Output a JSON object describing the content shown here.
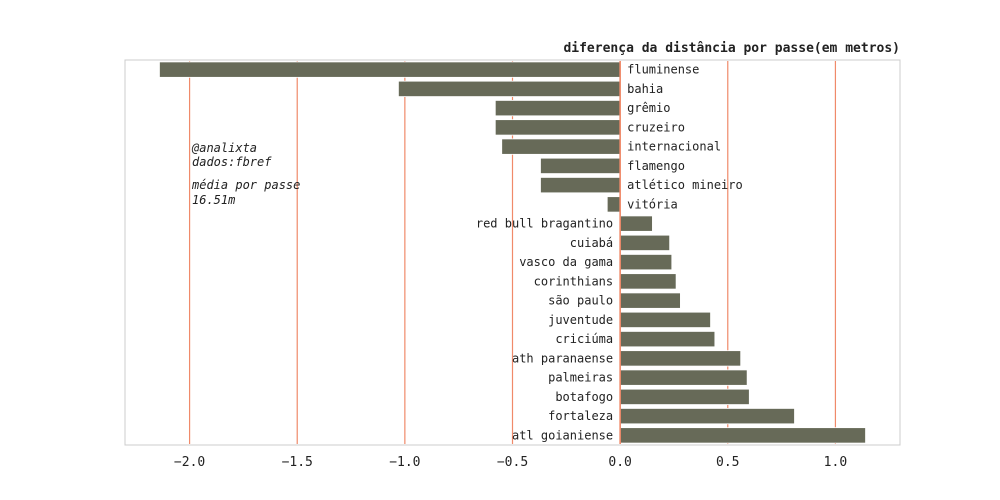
{
  "chart_data": {
    "type": "bar",
    "orientation": "horizontal",
    "title": "diferença da distância por passe(em metros)",
    "categories": [
      "fluminense",
      "bahia",
      "grêmio",
      "cruzeiro",
      "internacional",
      "flamengo",
      "atlético mineiro",
      "vitória",
      "red bull bragantino",
      "cuiabá",
      "vasco da gama",
      "corinthians",
      "são paulo",
      "juventude",
      "criciúma",
      "ath paranaense",
      "palmeiras",
      "botafogo",
      "fortaleza",
      "atl goianiense"
    ],
    "values": [
      -2.14,
      -1.03,
      -0.58,
      -0.58,
      -0.55,
      -0.37,
      -0.37,
      -0.06,
      0.15,
      0.23,
      0.24,
      0.26,
      0.28,
      0.42,
      0.44,
      0.56,
      0.59,
      0.6,
      0.81,
      1.14
    ],
    "xlim": [
      -2.3,
      1.3
    ],
    "xticks": [
      -2.0,
      -1.5,
      -1.0,
      -0.5,
      0.0,
      0.5,
      1.0
    ],
    "xtick_labels": [
      "−2.0",
      "−1.5",
      "−1.0",
      "−0.5",
      "0.0",
      "0.5",
      "1.0"
    ],
    "grid": "vertical",
    "bar_color": "#676a58",
    "grid_color": "#f08a6a",
    "annotations": {
      "line1": "@analixta",
      "line2": "dados:fbref",
      "line3": "média por passe",
      "line4": "16.51m"
    }
  }
}
